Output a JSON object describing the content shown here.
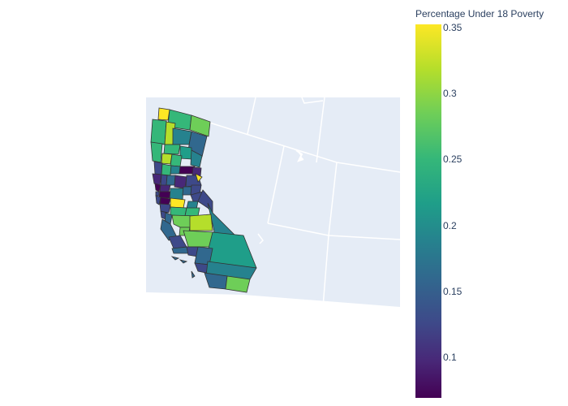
{
  "colorbar": {
    "title": "Percentage Under 18 Poverty",
    "ticks": [
      "0.35",
      "0.3",
      "0.25",
      "0.2",
      "0.15",
      "0.1"
    ]
  },
  "map": {
    "region": "California counties",
    "land_color": "#e5ecf6",
    "border_color": "#ffffff",
    "county_outline": "#333333"
  },
  "colors": {
    "low": "#440154",
    "mid_low": "#3e4989",
    "mid": "#26828e",
    "mid_high": "#35b779",
    "high": "#b5de2b",
    "max": "#fde725"
  }
}
